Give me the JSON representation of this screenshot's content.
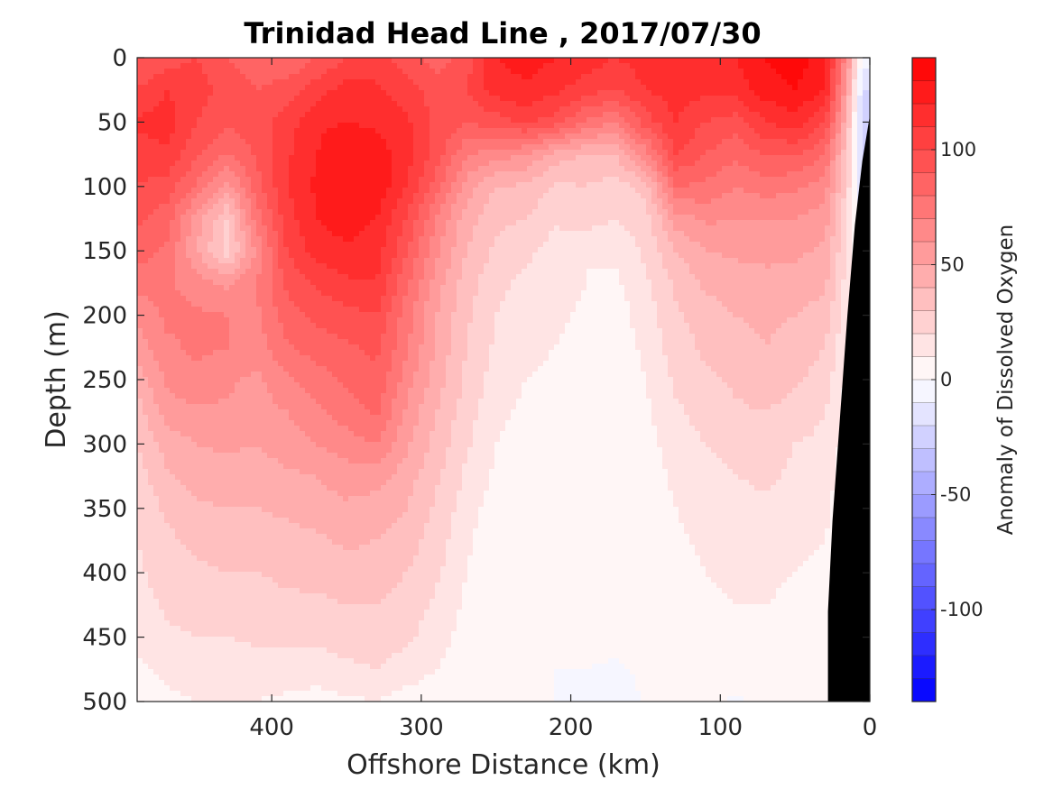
{
  "chart_data": {
    "type": "heatmap",
    "title": "Trinidad Head Line , 2017/07/30",
    "xlabel": "Offshore Distance (km)",
    "ylabel": "Depth (m)",
    "colorbar_label": "Anomaly of Dissolved Oxygen",
    "x_reversed": true,
    "y_reversed": true,
    "xlim": [
      490,
      0
    ],
    "ylim": [
      500,
      0
    ],
    "x_ticks": [
      400,
      300,
      200,
      100,
      0
    ],
    "x_tick_labels": [
      "400",
      "300",
      "200",
      "100",
      "0"
    ],
    "y_ticks": [
      0,
      50,
      100,
      150,
      200,
      250,
      300,
      350,
      400,
      450,
      500
    ],
    "y_tick_labels": [
      "0",
      "50",
      "100",
      "150",
      "200",
      "250",
      "300",
      "350",
      "400",
      "450",
      "500"
    ],
    "clim": [
      -140,
      140
    ],
    "colorbar_ticks": [
      100,
      50,
      0,
      -50,
      -100
    ],
    "colorbar_tick_labels": [
      "100",
      "50",
      "0",
      "-50",
      "-100"
    ],
    "colormap": {
      "negative": "#0000ff",
      "zero": "#ffffff",
      "positive": "#ff0000"
    },
    "levels": 28,
    "bottom_mask_color": "#000000",
    "x": [
      490,
      470,
      450,
      430,
      410,
      390,
      370,
      350,
      330,
      310,
      290,
      270,
      250,
      230,
      210,
      190,
      170,
      150,
      130,
      110,
      90,
      70,
      50,
      30,
      15,
      5
    ],
    "depth": [
      0,
      25,
      50,
      75,
      100,
      125,
      150,
      175,
      200,
      225,
      250,
      275,
      300,
      325,
      350,
      375,
      400,
      425,
      450,
      475,
      500
    ],
    "values": [
      [
        90,
        95,
        100,
        90,
        85,
        80,
        90,
        100,
        105,
        95,
        85,
        95,
        120,
        125,
        120,
        115,
        110,
        115,
        118,
        115,
        120,
        130,
        135,
        125,
        60,
        -5
      ],
      [
        100,
        110,
        105,
        95,
        90,
        95,
        105,
        115,
        112,
        105,
        95,
        100,
        115,
        118,
        112,
        105,
        100,
        110,
        115,
        112,
        115,
        125,
        130,
        120,
        50,
        -20
      ],
      [
        112,
        115,
        100,
        92,
        95,
        105,
        118,
        120,
        118,
        112,
        98,
        90,
        95,
        102,
        95,
        78,
        70,
        95,
        110,
        100,
        95,
        110,
        115,
        100,
        40,
        -30
      ],
      [
        105,
        108,
        92,
        80,
        92,
        108,
        120,
        128,
        125,
        115,
        95,
        72,
        65,
        60,
        45,
        40,
        40,
        65,
        100,
        90,
        82,
        90,
        92,
        80,
        30,
        -25
      ],
      [
        100,
        95,
        78,
        55,
        85,
        110,
        122,
        130,
        128,
        110,
        85,
        55,
        40,
        38,
        28,
        30,
        25,
        35,
        80,
        78,
        70,
        75,
        72,
        65,
        25,
        -20
      ],
      [
        92,
        85,
        55,
        30,
        75,
        105,
        120,
        125,
        120,
        100,
        70,
        45,
        32,
        30,
        22,
        25,
        20,
        25,
        55,
        62,
        60,
        60,
        60,
        55,
        20,
        -15
      ],
      [
        85,
        78,
        50,
        25,
        62,
        100,
        115,
        118,
        115,
        92,
        62,
        40,
        28,
        22,
        15,
        10,
        12,
        22,
        40,
        50,
        52,
        52,
        52,
        48,
        18,
        -10
      ],
      [
        75,
        72,
        65,
        58,
        70,
        92,
        102,
        108,
        110,
        82,
        55,
        35,
        22,
        18,
        15,
        10,
        8,
        18,
        32,
        42,
        45,
        48,
        46,
        42,
        15,
        -5
      ],
      [
        62,
        72,
        72,
        70,
        68,
        85,
        92,
        96,
        100,
        75,
        50,
        32,
        20,
        15,
        12,
        8,
        5,
        15,
        28,
        35,
        40,
        42,
        40,
        36,
        12,
        0
      ],
      [
        55,
        68,
        72,
        70,
        65,
        78,
        85,
        88,
        92,
        72,
        48,
        30,
        18,
        12,
        10,
        6,
        5,
        12,
        25,
        32,
        35,
        40,
        36,
        30,
        10,
        0
      ],
      [
        45,
        62,
        68,
        62,
        58,
        68,
        75,
        82,
        88,
        65,
        45,
        28,
        15,
        10,
        8,
        4,
        0,
        10,
        22,
        28,
        32,
        38,
        32,
        25,
        8,
        0
      ],
      [
        35,
        55,
        58,
        58,
        55,
        60,
        68,
        75,
        82,
        58,
        40,
        25,
        12,
        8,
        6,
        2,
        0,
        8,
        18,
        24,
        28,
        30,
        25,
        20,
        6,
        0
      ],
      [
        30,
        45,
        50,
        52,
        50,
        55,
        60,
        65,
        70,
        52,
        36,
        22,
        10,
        6,
        5,
        2,
        0,
        6,
        15,
        20,
        24,
        25,
        20,
        18,
        5,
        0
      ],
      [
        25,
        38,
        45,
        45,
        45,
        48,
        50,
        55,
        55,
        45,
        32,
        18,
        8,
        5,
        4,
        2,
        0,
        5,
        12,
        16,
        20,
        22,
        18,
        15,
        4,
        0
      ],
      [
        22,
        32,
        38,
        40,
        40,
        42,
        45,
        48,
        45,
        40,
        28,
        15,
        5,
        4,
        3,
        1,
        0,
        4,
        10,
        14,
        16,
        18,
        15,
        12,
        3,
        0
      ],
      [
        20,
        28,
        32,
        36,
        35,
        36,
        38,
        42,
        40,
        35,
        25,
        12,
        3,
        2,
        2,
        0,
        0,
        4,
        8,
        12,
        14,
        15,
        12,
        10,
        2,
        0
      ],
      [
        18,
        25,
        28,
        30,
        30,
        32,
        33,
        36,
        34,
        30,
        22,
        10,
        2,
        2,
        2,
        1,
        2,
        5,
        7,
        10,
        12,
        12,
        10,
        8,
        2,
        0
      ],
      [
        15,
        22,
        24,
        25,
        26,
        28,
        28,
        30,
        30,
        26,
        18,
        8,
        3,
        5,
        5,
        4,
        4,
        5,
        6,
        8,
        10,
        10,
        8,
        6,
        2,
        0
      ],
      [
        12,
        18,
        20,
        20,
        22,
        22,
        22,
        24,
        26,
        22,
        15,
        6,
        2,
        2,
        2,
        2,
        2,
        3,
        5,
        6,
        8,
        8,
        6,
        5,
        1,
        0
      ],
      [
        8,
        12,
        15,
        15,
        15,
        15,
        15,
        18,
        20,
        15,
        10,
        4,
        1,
        1,
        0,
        0,
        -1,
        1,
        2,
        3,
        4,
        5,
        5,
        3,
        1,
        0
      ],
      [
        5,
        8,
        10,
        10,
        10,
        8,
        6,
        8,
        10,
        6,
        4,
        1,
        0,
        0,
        0,
        -1,
        -1,
        0,
        1,
        1,
        -1,
        1,
        2,
        1,
        0,
        0
      ]
    ]
  }
}
